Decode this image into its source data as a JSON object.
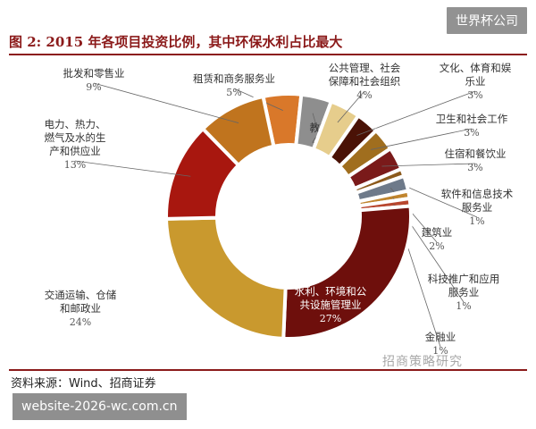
{
  "badge": "世界杯公司",
  "watermark": "website-2026-wc.com.cn",
  "wm_logo": "招商策略研究",
  "source": "资料来源：Wind、招商证券",
  "chart_data": {
    "type": "pie",
    "donut": true,
    "title": "图 2: 2015 年各项目投资比例，其中环保水利占比最大",
    "unit": "%",
    "slices": [
      {
        "lines": [
          "租赁和商务服务业"
        ],
        "pct": "5%",
        "value": 5,
        "color": "#d9782a"
      },
      {
        "lines": [
          "教育"
        ],
        "pct": "4%",
        "value": 4,
        "color": "#8e8e8e"
      },
      {
        "lines": [
          "公共管理、社会",
          "保障和社会组织"
        ],
        "pct": "4%",
        "value": 4,
        "color": "#e6cd8c"
      },
      {
        "lines": [
          "文化、体育和娱",
          "乐业"
        ],
        "pct": "3%",
        "value": 3,
        "color": "#4a1206"
      },
      {
        "lines": [
          "卫生和社会工作"
        ],
        "pct": "3%",
        "value": 3,
        "color": "#a06e1e"
      },
      {
        "lines": [
          "住宿和餐饮业"
        ],
        "pct": "3%",
        "value": 3,
        "color": "#7a1a1a"
      },
      {
        "lines": [
          "软件和信息技术",
          "服务业"
        ],
        "pct": "1%",
        "value": 1,
        "color": "#8c5a1c"
      },
      {
        "lines": [
          "建筑业"
        ],
        "pct": "2%",
        "value": 2,
        "color": "#6e7a8a"
      },
      {
        "lines": [
          "科技推广和应用",
          "服务业"
        ],
        "pct": "1%",
        "value": 1,
        "color": "#c0852e"
      },
      {
        "lines": [
          "金融业"
        ],
        "pct": "1%",
        "value": 1,
        "color": "#b8462e"
      },
      {
        "lines": [
          "水利、环境和公",
          "共设施管理业"
        ],
        "pct": "27%",
        "value": 27,
        "color": "#6e0f0c"
      },
      {
        "lines": [
          "交通运输、仓储",
          "和邮政业"
        ],
        "pct": "24%",
        "value": 24,
        "color": "#c9992e"
      },
      {
        "lines": [
          "电力、热力、",
          "燃气及水的生",
          "产和供应业"
        ],
        "pct": "13%",
        "value": 13,
        "color": "#a8170f"
      },
      {
        "lines": [
          "批发和零售业"
        ],
        "pct": "9%",
        "value": 9,
        "color": "#c0741e"
      }
    ]
  }
}
